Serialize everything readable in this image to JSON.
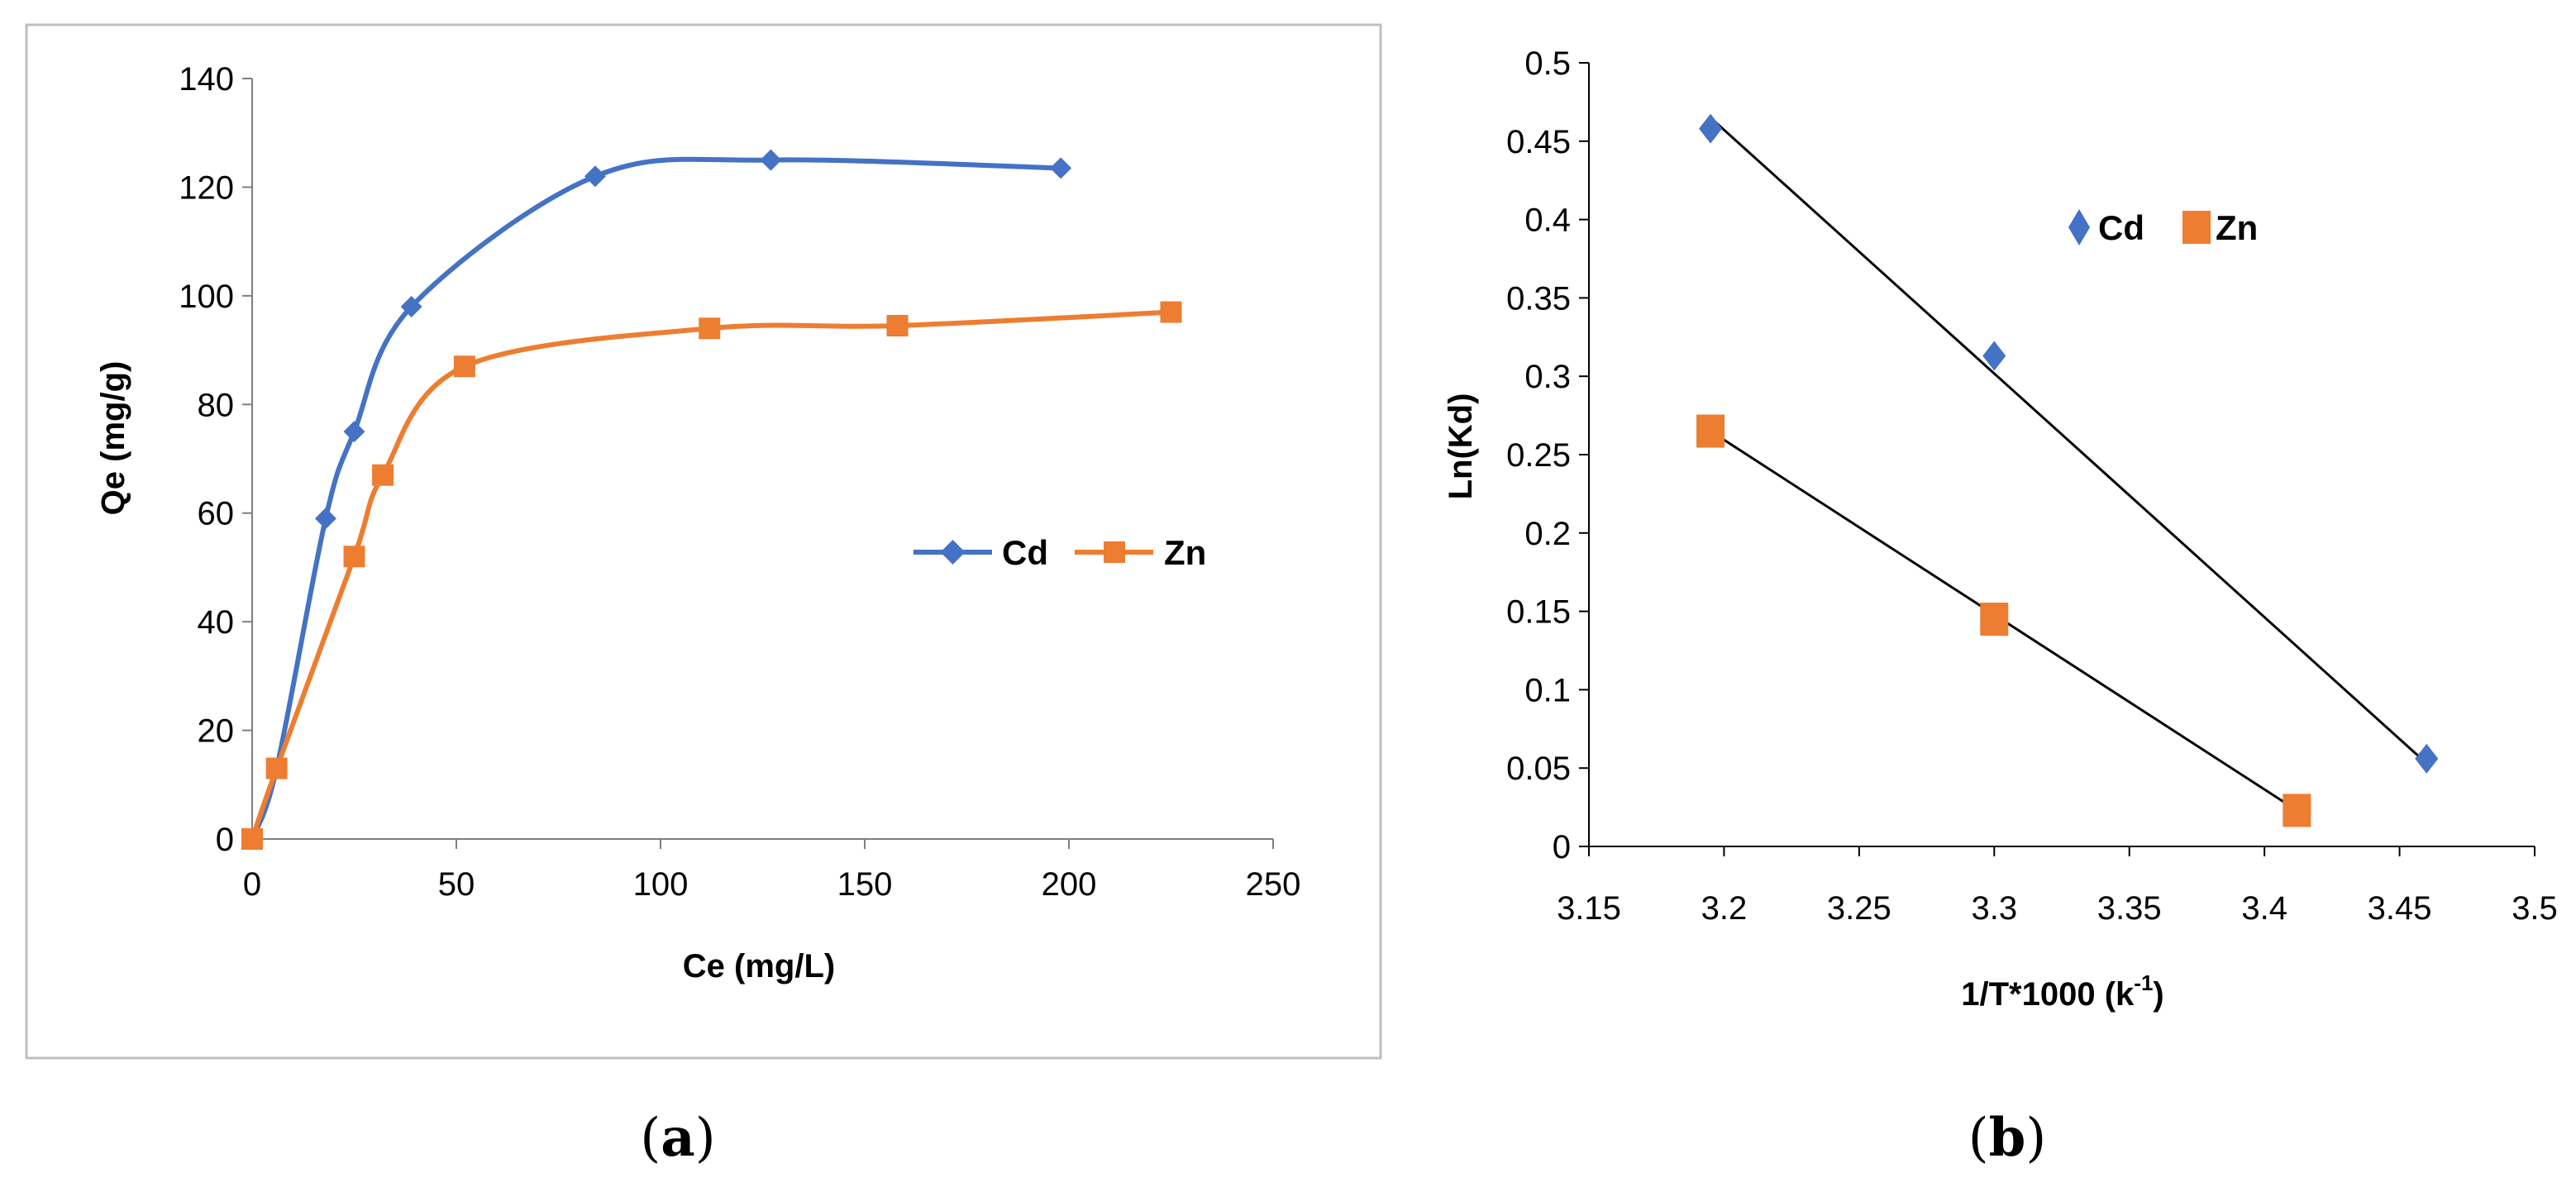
{
  "chart_data": [
    {
      "type": "line",
      "panel": "a",
      "caption_open": "(",
      "caption_letter": "a",
      "caption_close": ")",
      "xlabel": "Ce (mg/L)",
      "ylabel": "Qe (mg/g)",
      "xlim": [
        0,
        250
      ],
      "ylim": [
        0,
        140
      ],
      "xticks": [
        0,
        50,
        100,
        150,
        200,
        250
      ],
      "yticks": [
        0,
        20,
        40,
        60,
        80,
        100,
        120,
        140
      ],
      "grid": false,
      "legend_position": "right-middle",
      "series": [
        {
          "name": "Cd",
          "color": "#4472C4",
          "marker": "diamond",
          "x": [
            0,
            6,
            18,
            25,
            39,
            84,
            127,
            198
          ],
          "y": [
            0,
            13,
            59,
            75,
            98,
            122,
            125,
            123.5
          ]
        },
        {
          "name": "Zn",
          "color": "#ED7D31",
          "marker": "square",
          "x": [
            0,
            6,
            25,
            32,
            52,
            112,
            158,
            225
          ],
          "y": [
            0,
            13,
            52,
            67,
            87,
            94,
            94.5,
            97
          ]
        }
      ]
    },
    {
      "type": "scatter",
      "panel": "b",
      "caption_open": "(",
      "caption_letter": "b",
      "caption_close": ")",
      "xlabel": "1/T*1000 (k",
      "xlabel_sup": "-1",
      "xlabel_close": ")",
      "ylabel": "Ln(Kd)",
      "xlim": [
        3.15,
        3.5
      ],
      "ylim": [
        0,
        0.5
      ],
      "xticks": [
        3.15,
        3.2,
        3.25,
        3.3,
        3.35,
        3.4,
        3.45,
        3.5
      ],
      "xtick_labels": [
        "3.15",
        "3.2",
        "3.25",
        "3.3",
        "3.35",
        "3.4",
        "3.45",
        "3.5"
      ],
      "yticks": [
        0,
        0.05,
        0.1,
        0.15,
        0.2,
        0.25,
        0.3,
        0.35,
        0.4,
        0.45,
        0.5
      ],
      "ytick_labels": [
        "0",
        "0.05",
        "0.1",
        "0.15",
        "0.2",
        "0.25",
        "0.3",
        "0.35",
        "0.4",
        "0.45",
        "0.5"
      ],
      "grid": false,
      "legend_position": "top-right",
      "series": [
        {
          "name": "Cd",
          "color": "#4472C4",
          "marker": "diamond",
          "x": [
            3.195,
            3.3,
            3.46
          ],
          "y": [
            0.458,
            0.313,
            0.056
          ],
          "trendline": {
            "x": [
              3.195,
              3.46
            ],
            "y": [
              0.465,
              0.053
            ]
          }
        },
        {
          "name": "Zn",
          "color": "#ED7D31",
          "marker": "square",
          "x": [
            3.195,
            3.3,
            3.412
          ],
          "y": [
            0.265,
            0.145,
            0.023
          ],
          "trendline": {
            "x": [
              3.195,
              3.412
            ],
            "y": [
              0.265,
              0.023
            ]
          }
        }
      ]
    }
  ]
}
